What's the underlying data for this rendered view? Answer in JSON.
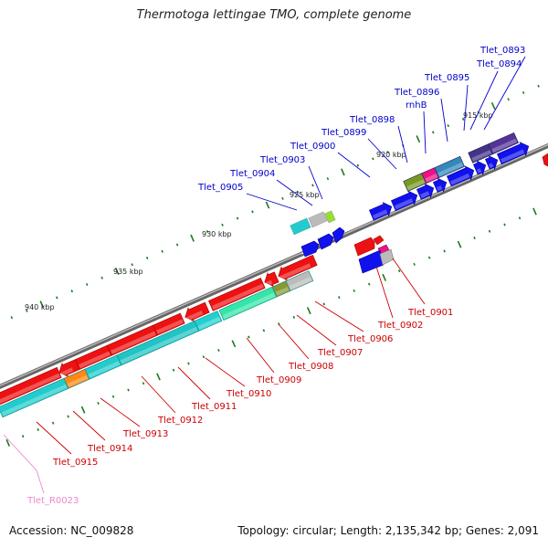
{
  "title": "Thermotoga lettingae TMO, complete genome",
  "footer": {
    "accession": "Accession: NC_009828",
    "summary": "Topology: circular; Length: 2,135,342 bp; Genes: 2,091"
  },
  "colors": {
    "backbone": "#8a8a8a",
    "forward_label": "#0000cc",
    "reverse_label": "#cc0000",
    "rna_label": "#ee88cc",
    "tick": "#1a7a1a"
  },
  "scale_labels": [
    "915 kbp",
    "920 kbp",
    "925 kbp",
    "930 kbp",
    "935 kbp",
    "940 kbp"
  ],
  "forward_genes": [
    "Tlet_0893",
    "Tlet_0894",
    "Tlet_0895",
    "Tlet_0896",
    "rnhB",
    "Tlet_0898",
    "Tlet_0899",
    "Tlet_0900",
    "Tlet_0903",
    "Tlet_0904",
    "Tlet_0905"
  ],
  "reverse_genes": [
    "Tlet_0901",
    "Tlet_0902",
    "Tlet_0906",
    "Tlet_0907",
    "Tlet_0908",
    "Tlet_0909",
    "Tlet_0910",
    "Tlet_0911",
    "Tlet_0912",
    "Tlet_0913",
    "Tlet_0914",
    "Tlet_0915"
  ],
  "rna_genes": [
    "Tlet_R0023"
  ]
}
